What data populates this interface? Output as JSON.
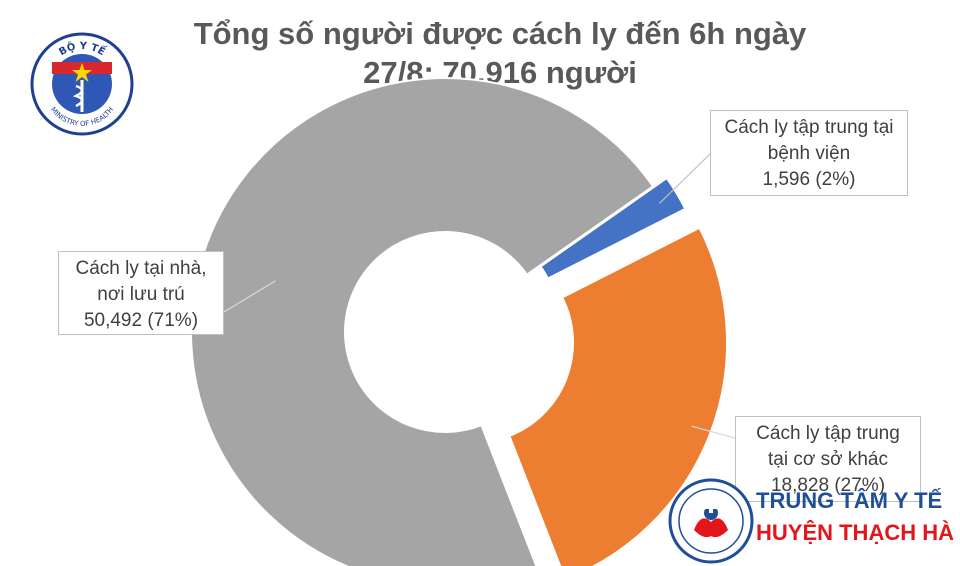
{
  "title_line1": "Tổng số người được cách ly đến 6h ngày",
  "title_line2": "27/8: 70.916 người",
  "logo_moh": {
    "top_text": "BỘ Y TẾ",
    "bottom_text": "MINISTRY OF HEALTH"
  },
  "chart_data": {
    "type": "pie",
    "title": "Tổng số người được cách ly đến 6h ngày 27/8: 70.916 người",
    "slices": [
      {
        "label_lines": [
          "Cách ly tập trung tại",
          "bệnh viện",
          "1,596 (2%)"
        ],
        "value": 1596,
        "percent": 2,
        "color": "#4472c4"
      },
      {
        "label_lines": [
          "Cách ly tập trung",
          "tại cơ sở khác",
          "18,828 (27%)"
        ],
        "value": 18828,
        "percent": 27,
        "color": "#ed7d31"
      },
      {
        "label_lines": [
          "Cách ly tại nhà,",
          "nơi lưu trú",
          "50,492 (71%)"
        ],
        "value": 50492,
        "percent": 71,
        "color": "#a5a5a5"
      }
    ]
  },
  "brand": {
    "line1": "TRUNG TÂM Y TẾ",
    "line2": "HUYỆN THẠCH HÀ",
    "colors": {
      "line1": "#1f4e9a",
      "line2": "#e3161b"
    }
  }
}
